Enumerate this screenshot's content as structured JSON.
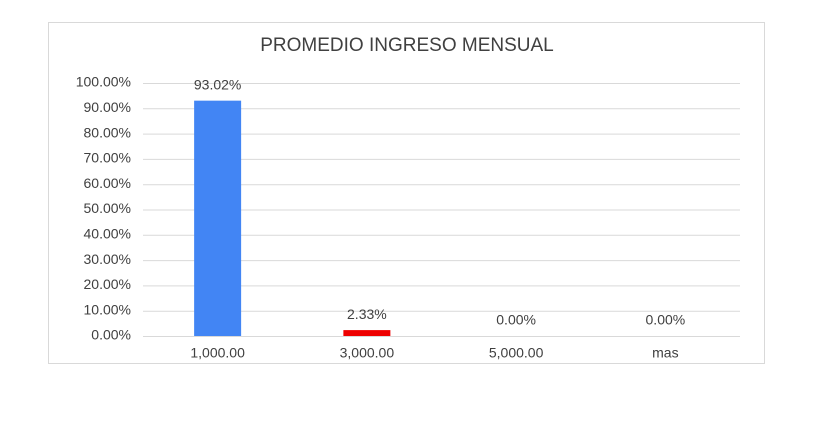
{
  "chart_data": {
    "type": "bar",
    "title": "PROMEDIO INGRESO MENSUAL",
    "categories": [
      "1,000.00",
      "3,000.00",
      "5,000.00",
      "mas"
    ],
    "values": [
      93.02,
      2.33,
      0,
      0
    ],
    "value_labels": [
      "93.02%",
      "2.33%",
      "0.00%",
      "0.00%"
    ],
    "colors": [
      "#4285f4",
      "#ee0000",
      "#4285f4",
      "#4285f4"
    ],
    "ylim": [
      0,
      100
    ],
    "yticks": [
      {
        "value": 0,
        "label": "0.00%"
      },
      {
        "value": 10,
        "label": "10.00%"
      },
      {
        "value": 20,
        "label": "20.00%"
      },
      {
        "value": 30,
        "label": "30.00%"
      },
      {
        "value": 40,
        "label": "40.00%"
      },
      {
        "value": 50,
        "label": "50.00%"
      },
      {
        "value": 60,
        "label": "60.00%"
      },
      {
        "value": 70,
        "label": "70.00%"
      },
      {
        "value": 80,
        "label": "80.00%"
      },
      {
        "value": 90,
        "label": "90.00%"
      },
      {
        "value": 100,
        "label": "100.00%"
      }
    ],
    "grid": true
  }
}
